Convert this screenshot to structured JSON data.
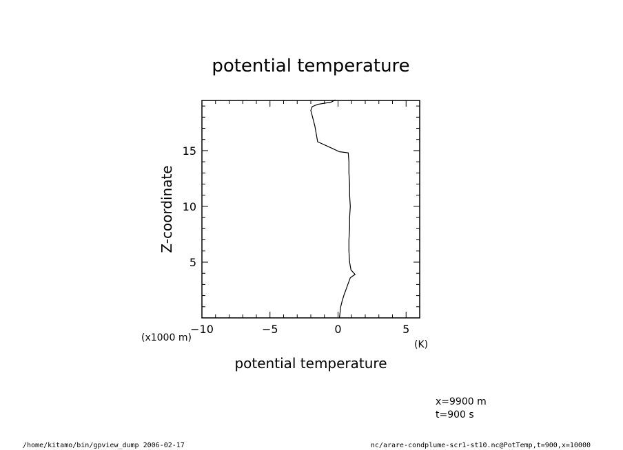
{
  "chart_data": {
    "type": "line",
    "title": "potential temperature",
    "xlabel": "potential temperature",
    "ylabel": "Z-coordinate",
    "x_unit": "(K)",
    "y_unit": "(x1000 m)",
    "xlim": [
      -10,
      6
    ],
    "ylim": [
      0,
      19.5
    ],
    "x_ticks": [
      -10,
      -5,
      0,
      5
    ],
    "x_tick_labels": [
      "−10",
      "−5",
      "0",
      "5"
    ],
    "y_ticks": [
      5,
      10,
      15
    ],
    "y_tick_labels": [
      "5",
      "10",
      "15"
    ],
    "grid": false,
    "series": [
      {
        "x": [
          0.1,
          0.15,
          0.2,
          0.3,
          0.45,
          0.6,
          0.75,
          0.9,
          1.25,
          0.95,
          0.85,
          0.8,
          0.8,
          0.85,
          0.85,
          0.9,
          0.85,
          0.85,
          0.8,
          0.8,
          0.75,
          0.1,
          -0.6,
          -1.5,
          -1.6,
          -1.7,
          -1.85,
          -2.0,
          -1.9,
          -1.5,
          -0.5,
          -0.2
        ],
        "y": [
          0.0,
          0.5,
          1.0,
          1.5,
          2.1,
          2.6,
          3.1,
          3.6,
          3.9,
          4.3,
          5.0,
          6.0,
          7.0,
          8.0,
          9.0,
          10.0,
          11.0,
          12.0,
          13.0,
          14.0,
          14.8,
          14.9,
          15.3,
          15.8,
          16.5,
          17.2,
          17.9,
          18.6,
          18.95,
          19.15,
          19.35,
          19.55
        ]
      }
    ]
  },
  "annotations": {
    "position_x": "x=9900  m",
    "time": "t=900  s"
  },
  "footer": {
    "left": "/home/kitamo/bin/gpview_dump  2006-02-17",
    "right": "nc/arare-condplume-scr1-st10.nc@PotTemp,t=900,x=10000"
  }
}
